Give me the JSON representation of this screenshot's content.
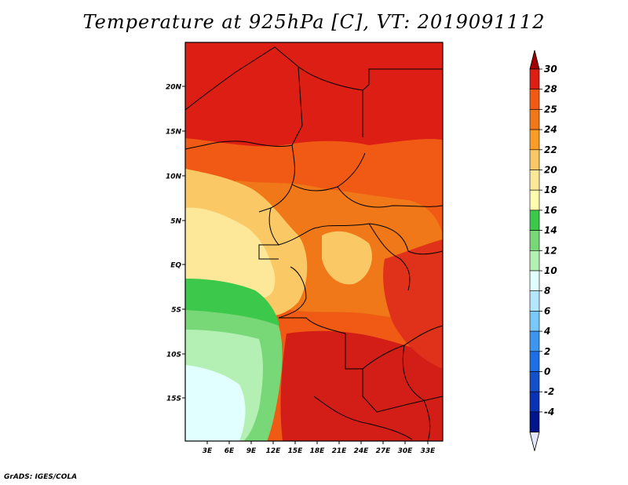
{
  "title": "Temperature at 925hPa [C], VT: 2019091112",
  "credit": "GrADS: IGES/COLA",
  "map": {
    "lat_labels": [
      "20N",
      "15N",
      "10N",
      "5N",
      "EQ",
      "5S",
      "10S",
      "15S"
    ],
    "lon_labels": [
      "3E",
      "6E",
      "9E",
      "12E",
      "15E",
      "18E",
      "21E",
      "24E",
      "27E",
      "30E",
      "33E"
    ],
    "regions": [
      {
        "name": "hot-north",
        "color": "#dc1e14"
      },
      {
        "name": "sahel",
        "color": "#f05a14"
      },
      {
        "name": "central-orange",
        "color": "#f07818"
      },
      {
        "name": "plateau-light",
        "color": "#fac864"
      },
      {
        "name": "coast-pale",
        "color": "#fde89a"
      },
      {
        "name": "ocean-green",
        "color": "#3cc84a"
      },
      {
        "name": "ocean-lightgreen",
        "color": "#78d878"
      },
      {
        "name": "ocean-palegreen",
        "color": "#b4f0b4"
      },
      {
        "name": "ocean-cyan",
        "color": "#e1ffff"
      },
      {
        "name": "south-red",
        "color": "#d21e16"
      },
      {
        "name": "east-red",
        "color": "#e0321a"
      }
    ]
  },
  "colorbar": {
    "labels": [
      "30",
      "28",
      "25",
      "24",
      "22",
      "20",
      "18",
      "16",
      "14",
      "12",
      "10",
      "8",
      "6",
      "4",
      "2",
      "0",
      "-2",
      "-4"
    ],
    "colors": [
      "#dc1e14",
      "#f05a14",
      "#f07818",
      "#fa9c28",
      "#fac864",
      "#fde89a",
      "#fffdb0",
      "#3cc84a",
      "#78d878",
      "#b4f0b4",
      "#e1ffff",
      "#b4e6ff",
      "#78c8fa",
      "#3c96f0",
      "#1e6ee6",
      "#1450c8",
      "#0a32b4",
      "#00148c"
    ],
    "top_color": "#a00000",
    "bottom_color": "#e6e6fa"
  }
}
